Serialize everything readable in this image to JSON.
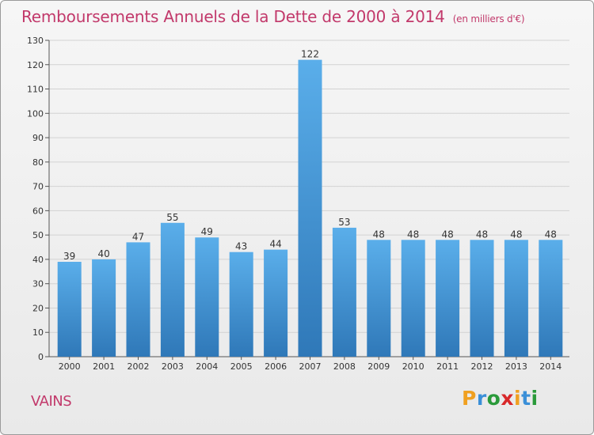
{
  "title": "Remboursements Annuels de la Dette de 2000 à 2014",
  "title_unit": "(en milliers d'€)",
  "town": "VAINS",
  "logo": {
    "letters": [
      "P",
      "r",
      "o",
      "x",
      "i",
      "t",
      "i"
    ],
    "colors": [
      "#f0a020",
      "#3a8fd8",
      "#2a9a3a",
      "#d8282a",
      "#f0a020",
      "#3a8fd8",
      "#2a9a3a"
    ]
  },
  "colors": {
    "bar_top": "#5aaeea",
    "bar_bottom": "#2f78b8",
    "title": "#c2396b",
    "grid": "#d2d2d2"
  },
  "chart_data": {
    "type": "bar",
    "title": "Remboursements Annuels de la Dette de 2000 à 2014",
    "categories": [
      "2000",
      "2001",
      "2002",
      "2003",
      "2004",
      "2005",
      "2006",
      "2007",
      "2008",
      "2009",
      "2010",
      "2011",
      "2012",
      "2013",
      "2014"
    ],
    "values": [
      39,
      40,
      47,
      55,
      49,
      43,
      44,
      122,
      53,
      48,
      48,
      48,
      48,
      48,
      48
    ],
    "ylim": [
      0,
      130
    ],
    "yticks": [
      0,
      10,
      20,
      30,
      40,
      50,
      60,
      70,
      80,
      90,
      100,
      110,
      120,
      130
    ],
    "grid": true,
    "legend": "none"
  }
}
